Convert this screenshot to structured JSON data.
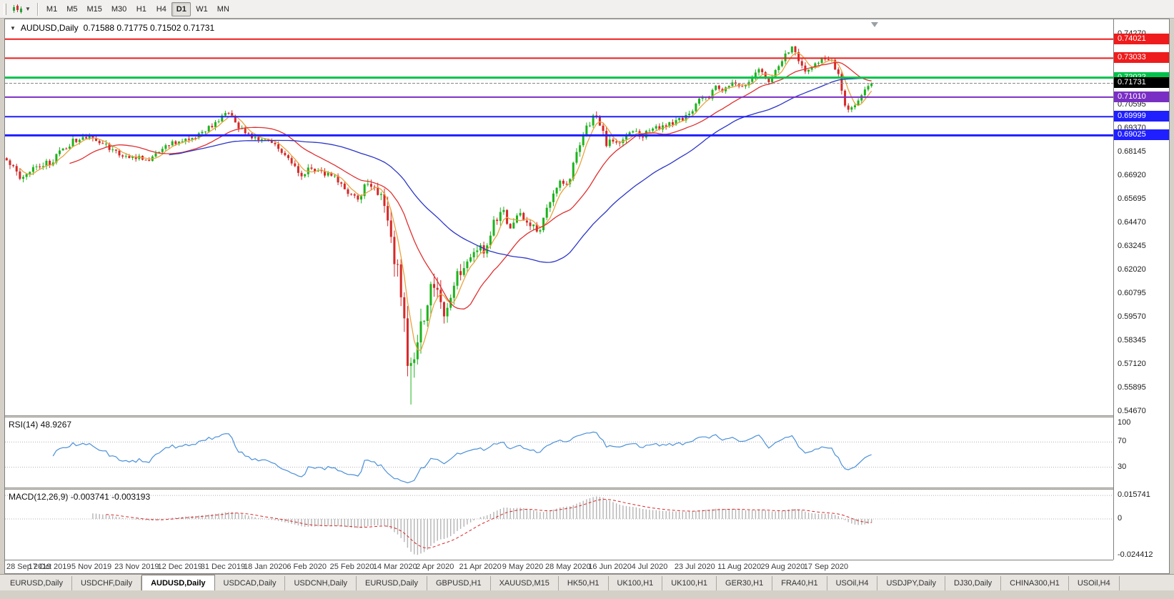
{
  "toolbar": {
    "timeframes": [
      "M1",
      "M5",
      "M15",
      "M30",
      "H1",
      "H4",
      "D1",
      "W1",
      "MN"
    ],
    "active_timeframe": "D1"
  },
  "window": {
    "tabs": [
      "EURUSD,Daily",
      "USDCHF,Daily",
      "AUDUSD,Daily",
      "USDCAD,Daily",
      "USDCNH,Daily",
      "EURUSD,Daily",
      "GBPUSD,H1",
      "XAUUSD,M15",
      "HK50,H1",
      "UK100,H1",
      "UK100,H1",
      "GER30,H1",
      "FRA40,H1",
      "USOil,H4",
      "USDJPY,Daily",
      "DJ30,Daily",
      "CHINA300,H1",
      "USOil,H4"
    ],
    "active_tab": "AUDUSD,Daily",
    "active_tab_index": 2
  },
  "chart": {
    "symbol_label": "AUDUSD,Daily",
    "ohlc_text": "0.71588 0.71775 0.71502 0.71731",
    "ohlc": {
      "open": 0.71588,
      "high": 0.71775,
      "low": 0.71502,
      "close": 0.71731
    },
    "price_axis": {
      "top_price": 0.7505,
      "bottom_price": 0.545,
      "plain_labels": [
        0.7427,
        0.73045,
        0.7182,
        0.70595,
        0.6937,
        0.68145,
        0.6692,
        0.65695,
        0.6447,
        0.63245,
        0.6202,
        0.60795,
        0.5957,
        0.58345,
        0.5712,
        0.55895,
        0.5467
      ]
    },
    "hlines": [
      {
        "price": 0.74021,
        "label": "0.74021",
        "color": "#ee1c1c",
        "width": 2
      },
      {
        "price": 0.73033,
        "label": "0.73033",
        "color": "#ee1c1c",
        "width": 2
      },
      {
        "price": 0.72022,
        "label": "0.72022",
        "color": "#00c24a",
        "width": 3
      },
      {
        "price": 0.7101,
        "label": "0.71010",
        "color": "#7a2fc4",
        "width": 2
      },
      {
        "price": 0.69999,
        "label": "0.69999",
        "color": "#1f1fff",
        "width": 2
      },
      {
        "price": 0.69025,
        "label": "0.69025",
        "color": "#1f1fff",
        "width": 3
      }
    ],
    "current_price": {
      "value": 0.71731,
      "label": "0.71731",
      "box_color": "#000000"
    },
    "date_labels": [
      "28 Sep 2019",
      "17 Oct 2019",
      "5 Nov 2019",
      "23 Nov 2019",
      "12 Dec 2019",
      "31 Dec 2019",
      "18 Jan 2020",
      "6 Feb 2020",
      "25 Feb 2020",
      "14 Mar 2020",
      "2 Apr 2020",
      "21 Apr 2020",
      "9 May 2020",
      "28 May 2020",
      "16 Jun 2020",
      "4 Jul 2020",
      "23 Jul 2020",
      "11 Aug 2020",
      "29 Aug 2020",
      "17 Sep 2020"
    ]
  },
  "indicators": {
    "rsi": {
      "label": "RSI(14) 48.9267",
      "period": 14,
      "last": 48.9267,
      "levels": [
        100,
        70,
        30
      ],
      "color": "#4a90d9"
    },
    "macd": {
      "label": "MACD(12,26,9) -0.003741 -0.003193",
      "fast": 12,
      "slow": 26,
      "signal": 9,
      "last_main": -0.003741,
      "last_signal": -0.003193,
      "axis": [
        "0.015741",
        "0",
        "-0.024412"
      ],
      "max": 0.015741,
      "min": -0.024412
    }
  },
  "chart_data": {
    "type": "candlestick",
    "symbol": "AUDUSD",
    "timeframe": "Daily",
    "x_range": [
      "28 Sep 2019",
      "17 Sep 2020"
    ],
    "y_range": [
      0.545,
      0.7505
    ],
    "num_candles": 262,
    "crash_low": {
      "index": 122,
      "price": 0.5506
    },
    "keyframes": [
      [
        0,
        0.6768,
        0.004
      ],
      [
        4,
        0.669,
        0.004
      ],
      [
        9,
        0.6745,
        0.0035
      ],
      [
        13,
        0.676,
        0.0035
      ],
      [
        18,
        0.6845,
        0.0035
      ],
      [
        22,
        0.6895,
        0.0035
      ],
      [
        26,
        0.6895,
        0.0035
      ],
      [
        31,
        0.6835,
        0.0035
      ],
      [
        35,
        0.679,
        0.003
      ],
      [
        39,
        0.6788,
        0.003
      ],
      [
        43,
        0.677,
        0.003
      ],
      [
        47,
        0.6845,
        0.003
      ],
      [
        52,
        0.6875,
        0.003
      ],
      [
        56,
        0.688,
        0.003
      ],
      [
        60,
        0.6925,
        0.003
      ],
      [
        65,
        0.7,
        0.003
      ],
      [
        67,
        0.7022,
        0.003
      ],
      [
        70,
        0.6935,
        0.0035
      ],
      [
        73,
        0.6905,
        0.003
      ],
      [
        78,
        0.687,
        0.003
      ],
      [
        82,
        0.6838,
        0.003
      ],
      [
        86,
        0.6768,
        0.0035
      ],
      [
        89,
        0.67,
        0.0035
      ],
      [
        91,
        0.6722,
        0.0035
      ],
      [
        95,
        0.6712,
        0.003
      ],
      [
        99,
        0.6685,
        0.003
      ],
      [
        102,
        0.6618,
        0.0035
      ],
      [
        104,
        0.6598,
        0.004
      ],
      [
        106,
        0.6552,
        0.0045
      ],
      [
        108,
        0.6645,
        0.005
      ],
      [
        111,
        0.6628,
        0.005
      ],
      [
        113,
        0.6578,
        0.006
      ],
      [
        115,
        0.648,
        0.009
      ],
      [
        117,
        0.6285,
        0.012
      ],
      [
        119,
        0.611,
        0.014
      ],
      [
        120,
        0.5985,
        0.015
      ],
      [
        121,
        0.5778,
        0.016
      ],
      [
        122,
        0.575,
        0.016
      ],
      [
        124,
        0.5815,
        0.013
      ],
      [
        126,
        0.5965,
        0.012
      ],
      [
        128,
        0.6135,
        0.011
      ],
      [
        130,
        0.609,
        0.01
      ],
      [
        132,
        0.5995,
        0.009
      ],
      [
        135,
        0.613,
        0.008
      ],
      [
        138,
        0.6245,
        0.007
      ],
      [
        141,
        0.632,
        0.0065
      ],
      [
        144,
        0.631,
        0.006
      ],
      [
        147,
        0.645,
        0.0055
      ],
      [
        150,
        0.6505,
        0.005
      ],
      [
        152,
        0.642,
        0.005
      ],
      [
        155,
        0.649,
        0.0045
      ],
      [
        158,
        0.6435,
        0.0045
      ],
      [
        161,
        0.6415,
        0.004
      ],
      [
        164,
        0.656,
        0.004
      ],
      [
        167,
        0.665,
        0.004
      ],
      [
        169,
        0.664,
        0.004
      ],
      [
        172,
        0.68,
        0.0045
      ],
      [
        175,
        0.6945,
        0.0045
      ],
      [
        178,
        0.701,
        0.0045
      ],
      [
        181,
        0.6865,
        0.005
      ],
      [
        183,
        0.688,
        0.0045
      ],
      [
        185,
        0.6855,
        0.004
      ],
      [
        188,
        0.693,
        0.004
      ],
      [
        192,
        0.69,
        0.0035
      ],
      [
        195,
        0.6938,
        0.0035
      ],
      [
        199,
        0.6955,
        0.003
      ],
      [
        203,
        0.6985,
        0.003
      ],
      [
        206,
        0.7005,
        0.003
      ],
      [
        209,
        0.709,
        0.003
      ],
      [
        212,
        0.7105,
        0.003
      ],
      [
        214,
        0.715,
        0.003
      ],
      [
        216,
        0.712,
        0.003
      ],
      [
        219,
        0.7185,
        0.003
      ],
      [
        221,
        0.716,
        0.003
      ],
      [
        224,
        0.718,
        0.003
      ],
      [
        227,
        0.7235,
        0.003
      ],
      [
        230,
        0.719,
        0.003
      ],
      [
        234,
        0.729,
        0.0032
      ],
      [
        237,
        0.737,
        0.0034
      ],
      [
        239,
        0.7278,
        0.0034
      ],
      [
        242,
        0.7232,
        0.0032
      ],
      [
        244,
        0.7285,
        0.003
      ],
      [
        247,
        0.7305,
        0.003
      ],
      [
        249,
        0.7288,
        0.003
      ],
      [
        251,
        0.7215,
        0.0035
      ],
      [
        253,
        0.7058,
        0.004
      ],
      [
        255,
        0.7032,
        0.0038
      ],
      [
        257,
        0.7082,
        0.0034
      ],
      [
        259,
        0.7152,
        0.0032
      ],
      [
        261,
        0.71731,
        0.003
      ]
    ],
    "moving_averages": [
      {
        "period": 5,
        "color": "#e8a33d"
      },
      {
        "period": 20,
        "color": "#e03030"
      },
      {
        "period": 50,
        "color": "#2b35c8"
      }
    ],
    "colors": {
      "up": "#1db31d",
      "down": "#d62828",
      "macd_hist": "#b4b4b4",
      "macd_signal": "#d62828"
    }
  }
}
